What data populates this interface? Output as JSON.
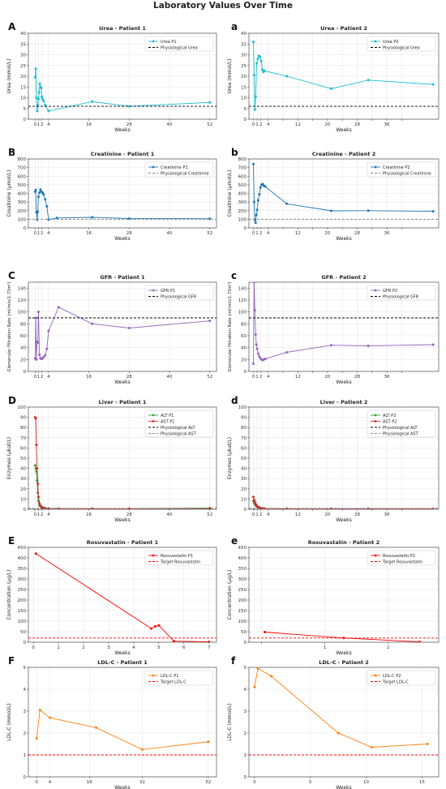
{
  "figure_title": "Laboratory Values Over Time",
  "chart_data": [
    {
      "panel": "A",
      "type": "line",
      "title": "Urea - Patient 1",
      "xlabel": "Weeks",
      "ylabel": "Urea (mmol/L)",
      "xlim": [
        -2,
        54
      ],
      "ylim": [
        0,
        40
      ],
      "xticks": [
        0,
        1,
        2,
        4,
        16,
        28,
        40,
        52
      ],
      "xticklabels": [
        "0",
        "1",
        "2",
        "4",
        "16",
        "28",
        "40",
        "52"
      ],
      "yticks": [
        0,
        5,
        10,
        15,
        20,
        25,
        30,
        35,
        40
      ],
      "grid": true,
      "legend_position": "upper right",
      "series": [
        {
          "name": "Urea P1",
          "color": "#17becf",
          "style": "line-marker",
          "x": [
            0,
            0.2,
            0.4,
            0.6,
            0.8,
            1.0,
            1.2,
            1.4,
            1.6,
            1.8,
            2.0,
            2.2,
            2.5,
            3.0,
            4.0,
            17.0,
            28.0,
            52.0
          ],
          "y": [
            19.5,
            23.5,
            10,
            3.8,
            6.5,
            9.5,
            12.5,
            16.5,
            15,
            14.5,
            10.5,
            9.5,
            8.5,
            6.5,
            3.8,
            8.2,
            6.0,
            7.8
          ]
        },
        {
          "name": "Physiological Urea",
          "color": "#000000",
          "style": "dashed",
          "y_const": 6.0
        }
      ]
    },
    {
      "panel": "a",
      "type": "line",
      "title": "Urea - Patient 2",
      "xlabel": "Weeks",
      "ylabel": "Urea (mmol/L)",
      "xlim": [
        -1.2,
        50
      ],
      "ylim": [
        0,
        40
      ],
      "xticks": [
        0,
        1,
        2,
        4,
        8,
        12,
        16,
        20,
        24,
        28,
        32,
        36,
        40
      ],
      "xticklabels": [
        "0",
        "1",
        "2",
        "4",
        "",
        "12",
        "",
        "20",
        "",
        "28",
        "",
        "36",
        ""
      ],
      "yticks": [
        0,
        5,
        10,
        15,
        20,
        25,
        30,
        35,
        40
      ],
      "grid": true,
      "legend_position": "upper right",
      "series": [
        {
          "name": "Urea P2",
          "color": "#17becf",
          "style": "line-marker",
          "x": [
            0,
            0.2,
            0.4,
            0.6,
            0.9,
            1.2,
            1.5,
            1.8,
            2.1,
            2.4,
            2.7,
            3.0,
            9.0,
            21.0,
            31.0,
            48.5
          ],
          "y": [
            36,
            20.5,
            4.5,
            10.5,
            26,
            28,
            29.5,
            29,
            27,
            23,
            22,
            22.5,
            20,
            14.2,
            18.2,
            16.2
          ]
        },
        {
          "name": "Physiological Urea",
          "color": "#000000",
          "style": "dashed",
          "y_const": 6.0
        }
      ]
    },
    {
      "panel": "B",
      "type": "line",
      "title": "Creatinine - Patient 1",
      "xlabel": "Weeks",
      "ylabel": "Creatinine (µmol/L)",
      "xlim": [
        -2,
        54
      ],
      "ylim": [
        0,
        800
      ],
      "xticks": [
        0,
        1,
        2,
        4,
        16,
        28,
        40,
        52
      ],
      "xticklabels": [
        "0",
        "1",
        "2",
        "4",
        "16",
        "28",
        "40",
        "52"
      ],
      "yticks": [
        0,
        100,
        200,
        300,
        400,
        500,
        600,
        700,
        800
      ],
      "grid": true,
      "legend_position": "upper right",
      "series": [
        {
          "name": "Creatinine P1",
          "color": "#1f77b4",
          "style": "line-marker",
          "x": [
            0,
            0.2,
            0.4,
            0.6,
            0.8,
            1.0,
            1.3,
            1.6,
            1.9,
            2.2,
            2.5,
            3.0,
            3.5,
            4.0,
            6.5,
            17.0,
            28.0,
            52.0
          ],
          "y": [
            420,
            440,
            180,
            95,
            190,
            360,
            410,
            445,
            420,
            410,
            390,
            330,
            250,
            95,
            115,
            122,
            108,
            106
          ]
        },
        {
          "name": "Physiological Creatinine",
          "color": "#888888",
          "style": "dashed",
          "y_const": 100
        }
      ]
    },
    {
      "panel": "b",
      "type": "line",
      "title": "Creatinine - Patient 2",
      "xlabel": "Weeks",
      "ylabel": "Creatinine (µmol/L)",
      "xlim": [
        -1.2,
        50
      ],
      "ylim": [
        0,
        800
      ],
      "xticks": [
        0,
        1,
        2,
        4,
        8,
        12,
        16,
        20,
        24,
        28,
        32,
        36,
        40
      ],
      "xticklabels": [
        "0",
        "1",
        "2",
        "4",
        "",
        "12",
        "",
        "20",
        "",
        "28",
        "",
        "36",
        ""
      ],
      "yticks": [
        0,
        100,
        200,
        300,
        400,
        500,
        600,
        700,
        800
      ],
      "grid": true,
      "legend_position": "upper right",
      "series": [
        {
          "name": "Creatinine P2",
          "color": "#1f77b4",
          "style": "line-marker",
          "x": [
            0,
            0.2,
            0.4,
            0.6,
            0.8,
            1.0,
            1.3,
            1.6,
            1.9,
            2.2,
            2.5,
            2.8,
            3.2,
            9.0,
            21.0,
            31.0,
            48.5
          ],
          "y": [
            740,
            300,
            95,
            60,
            150,
            210,
            320,
            390,
            470,
            500,
            510,
            490,
            480,
            280,
            198,
            200,
            192
          ]
        },
        {
          "name": "Physiological Creatinine",
          "color": "#888888",
          "style": "dashed",
          "y_const": 100
        }
      ]
    },
    {
      "panel": "C",
      "type": "line",
      "title": "GFR - Patient 1",
      "xlabel": "Weeks",
      "ylabel": "Glomerular Filtration Rate (ml/min/1.73m²)",
      "xlim": [
        -2,
        54
      ],
      "ylim": [
        0,
        150
      ],
      "xticks": [
        0,
        1,
        2,
        4,
        16,
        28,
        40,
        52
      ],
      "xticklabels": [
        "0",
        "1",
        "2",
        "4",
        "16",
        "28",
        "40",
        "52"
      ],
      "yticks": [
        0,
        20,
        40,
        60,
        80,
        100,
        120,
        140
      ],
      "grid": true,
      "legend_position": "upper right",
      "series": [
        {
          "name": "GFR P1",
          "color": "#9467bd",
          "style": "line-marker",
          "x": [
            0,
            0.2,
            0.4,
            0.6,
            0.8,
            1.0,
            1.3,
            1.6,
            1.9,
            2.2,
            2.5,
            3.0,
            3.5,
            4.0,
            7.0,
            17.0,
            28.0,
            52.0
          ],
          "y": [
            22,
            90,
            20,
            50,
            48,
            100,
            28,
            22,
            21,
            22,
            24,
            27,
            38,
            68,
            108,
            80,
            73,
            85
          ]
        },
        {
          "name": "Physiological GFR",
          "color": "#000000",
          "style": "dashed",
          "y_const": 90
        }
      ]
    },
    {
      "panel": "c",
      "type": "line",
      "title": "GFR - Patient 2",
      "xlabel": "Weeks",
      "ylabel": "Glomerular Filtration Rate (ml/min/1.73m²)",
      "xlim": [
        -1.2,
        50
      ],
      "ylim": [
        0,
        150
      ],
      "xticks": [
        0,
        1,
        2,
        4,
        8,
        12,
        16,
        20,
        24,
        28,
        32,
        36,
        40
      ],
      "xticklabels": [
        "0",
        "1",
        "2",
        "4",
        "",
        "12",
        "",
        "20",
        "",
        "28",
        "",
        "36",
        ""
      ],
      "yticks": [
        0,
        20,
        40,
        60,
        80,
        100,
        120,
        140
      ],
      "grid": true,
      "legend_position": "upper right",
      "series": [
        {
          "name": "GFR P2",
          "color": "#9467bd",
          "style": "line-marker",
          "x": [
            0,
            0.2,
            0.4,
            0.6,
            0.8,
            1.0,
            1.3,
            1.6,
            1.9,
            2.2,
            2.5,
            2.8,
            3.2,
            9.0,
            21.0,
            31.0,
            48.5
          ],
          "y": [
            13,
            150,
            103,
            62,
            45,
            38,
            30,
            25,
            22,
            20,
            19,
            20,
            21,
            32,
            44,
            43,
            45
          ]
        },
        {
          "name": "Physiological GFR",
          "color": "#000000",
          "style": "dashed",
          "y_const": 90
        }
      ]
    },
    {
      "panel": "D",
      "type": "line",
      "title": "Liver - Patient 1",
      "xlabel": "Weeks",
      "ylabel": "Enzymes (µkat/L)",
      "xlim": [
        -2,
        54
      ],
      "ylim": [
        0,
        100
      ],
      "xticks": [
        0,
        1,
        2,
        4,
        16,
        28,
        40,
        52
      ],
      "xticklabels": [
        "0",
        "1",
        "2",
        "4",
        "16",
        "28",
        "40",
        "52"
      ],
      "yticks": [
        0,
        10,
        20,
        30,
        40,
        50,
        60,
        70,
        80,
        90,
        100
      ],
      "grid": true,
      "legend_position": "upper right",
      "series": [
        {
          "name": "ALT P1",
          "color": "#2ca02c",
          "style": "line-marker",
          "x": [
            0,
            0.2,
            0.4,
            0.6,
            0.8,
            1.0,
            1.3,
            1.6,
            2.0,
            2.5,
            3.0,
            4.0,
            7.0,
            17.0,
            28.0,
            52.0
          ],
          "y": [
            43,
            40,
            37,
            28,
            16,
            8,
            4,
            2.5,
            2,
            1.5,
            1,
            0.8,
            0.6,
            0.5,
            0.5,
            1.2
          ]
        },
        {
          "name": "AST P1",
          "color": "#d62728",
          "style": "line-marker",
          "x": [
            0,
            0.2,
            0.4,
            0.6,
            0.8,
            1.0,
            1.3,
            1.6,
            2.0,
            2.5,
            3.0,
            4.0,
            7.0,
            17.0,
            28.0,
            52.0
          ],
          "y": [
            90,
            89,
            63,
            40,
            25,
            12,
            6,
            3.5,
            2,
            1.2,
            0.9,
            0.6,
            0.5,
            0.4,
            0.4,
            0.6
          ]
        },
        {
          "name": "Physiological ALT",
          "color": "#000000",
          "style": "dashed",
          "y_const": 0.6
        },
        {
          "name": "Physiological AST",
          "color": "#888888",
          "style": "dashed",
          "y_const": 0.6
        }
      ]
    },
    {
      "panel": "d",
      "type": "line",
      "title": "Liver - Patient 2",
      "xlabel": "Weeks",
      "ylabel": "Enzymes (µkat/L)",
      "xlim": [
        -1.2,
        50
      ],
      "ylim": [
        0,
        100
      ],
      "xticks": [
        0,
        1,
        2,
        4,
        8,
        12,
        16,
        20,
        24,
        28,
        32,
        36,
        40
      ],
      "xticklabels": [
        "0",
        "1",
        "2",
        "4",
        "",
        "12",
        "",
        "20",
        "",
        "28",
        "",
        "36",
        ""
      ],
      "yticks": [
        0,
        10,
        20,
        30,
        40,
        50,
        60,
        70,
        80,
        90,
        100
      ],
      "grid": true,
      "legend_position": "upper right",
      "series": [
        {
          "name": "ALT P2",
          "color": "#2ca02c",
          "style": "line-marker",
          "x": [
            0,
            0.2,
            0.4,
            0.6,
            0.8,
            1.0,
            1.3,
            1.6,
            2.0,
            2.5,
            3.0,
            9.0,
            21.0,
            31.0,
            48.5
          ],
          "y": [
            8,
            6,
            5,
            4,
            3,
            2.5,
            2,
            1.5,
            1,
            0.8,
            0.6,
            0.5,
            0.5,
            0.4,
            0.4
          ]
        },
        {
          "name": "AST P2",
          "color": "#d62728",
          "style": "line-marker",
          "x": [
            0,
            0.2,
            0.4,
            0.6,
            0.8,
            1.0,
            1.3,
            1.6,
            2.0,
            2.5,
            3.0,
            9.0,
            21.0,
            31.0,
            48.5
          ],
          "y": [
            12,
            9,
            7,
            5,
            4,
            3,
            2,
            1.5,
            1,
            0.8,
            0.6,
            0.5,
            0.4,
            0.4,
            0.4
          ]
        },
        {
          "name": "Physiological ALT",
          "color": "#000000",
          "style": "dashed",
          "y_const": 0.6
        },
        {
          "name": "Physiological AST",
          "color": "#888888",
          "style": "dashed",
          "y_const": 0.6
        }
      ]
    },
    {
      "panel": "E",
      "type": "line",
      "title": "Rosuvastatin - Patient 1",
      "xlabel": "Weeks",
      "ylabel": "Concentration (µg/L)",
      "xlim": [
        -0.2,
        7.3
      ],
      "ylim": [
        0,
        450
      ],
      "xticks": [
        0,
        1,
        2,
        3,
        4,
        5,
        6,
        7
      ],
      "xticklabels": [
        "0",
        "1",
        "2",
        "3",
        "4",
        "5",
        "6",
        "7"
      ],
      "yticks": [
        0,
        50,
        100,
        150,
        200,
        250,
        300,
        350,
        400,
        450
      ],
      "grid": true,
      "legend_position": "upper right",
      "series": [
        {
          "name": "Rosuvastatin P1",
          "color": "#ff0000",
          "style": "line-marker",
          "x": [
            0.1,
            4.7,
            4.85,
            5.0,
            5.6,
            7.0
          ],
          "y": [
            420,
            65,
            75,
            80,
            5,
            2
          ]
        },
        {
          "name": "Target Rosuvastatin",
          "color": "#ff0000",
          "style": "dashed",
          "y_const": 20
        }
      ]
    },
    {
      "panel": "e",
      "type": "line",
      "title": "Rosuvastatin - Patient 2",
      "xlabel": "Weeks",
      "ylabel": "Concentration (µg/L)",
      "xlim": [
        -0.2,
        2.8
      ],
      "ylim": [
        0,
        450
      ],
      "xticks": [
        0,
        1,
        2
      ],
      "xticklabels": [
        "",
        "1",
        "2"
      ],
      "yticks": [
        0,
        50,
        100,
        150,
        200,
        250,
        300,
        350,
        400,
        450
      ],
      "grid": true,
      "legend_position": "upper right",
      "series": [
        {
          "name": "Rosuvastatin P2",
          "color": "#ff0000",
          "style": "line-marker",
          "x": [
            0.05,
            1.3,
            2.5
          ],
          "y": [
            48,
            20,
            2
          ]
        },
        {
          "name": "Target Rosuvastatin",
          "color": "#ff0000",
          "style": "dashed",
          "y_const": 20
        }
      ]
    },
    {
      "panel": "F",
      "type": "line",
      "title": "LDL-C - Patient 1",
      "xlabel": "Weeks",
      "ylabel": "LDL-C (mmol/L)",
      "xlim": [
        -2.5,
        54.5
      ],
      "ylim": [
        0,
        5
      ],
      "xticks": [
        0,
        4,
        16,
        32,
        52
      ],
      "xticklabels": [
        "0",
        "4",
        "16",
        "32",
        "52"
      ],
      "yticks": [
        0,
        1,
        2,
        3,
        4,
        5
      ],
      "grid": true,
      "legend_position": "upper right",
      "series": [
        {
          "name": "LDL-C P1",
          "color": "#ff7f0e",
          "style": "line-marker",
          "x": [
            0,
            1,
            4,
            18,
            32,
            52
          ],
          "y": [
            1.75,
            3.05,
            2.7,
            2.25,
            1.25,
            1.6
          ]
        },
        {
          "name": "Target LDL-C",
          "color": "#ff0000",
          "style": "dashed",
          "y_const": 1.0
        }
      ]
    },
    {
      "panel": "f",
      "type": "line",
      "title": "LDL-C - Patient 2",
      "xlabel": "Weeks",
      "ylabel": "LDL-C (mmol/L)",
      "xlim": [
        -0.5,
        16.5
      ],
      "ylim": [
        0,
        5
      ],
      "xticks": [
        0,
        5,
        10,
        15
      ],
      "xticklabels": [
        "0",
        "5",
        "10",
        "15"
      ],
      "yticks": [
        0,
        1,
        2,
        3,
        4,
        5
      ],
      "grid": true,
      "legend_position": "upper right",
      "series": [
        {
          "name": "LDL-C P2",
          "color": "#ff7f0e",
          "style": "line-marker",
          "x": [
            0,
            0.3,
            1.5,
            7.5,
            10.5,
            15.5
          ],
          "y": [
            4.1,
            4.95,
            4.6,
            2.0,
            1.35,
            1.5
          ]
        },
        {
          "name": "Target LDL-C",
          "color": "#ff0000",
          "style": "dashed",
          "y_const": 1.0
        }
      ]
    }
  ]
}
